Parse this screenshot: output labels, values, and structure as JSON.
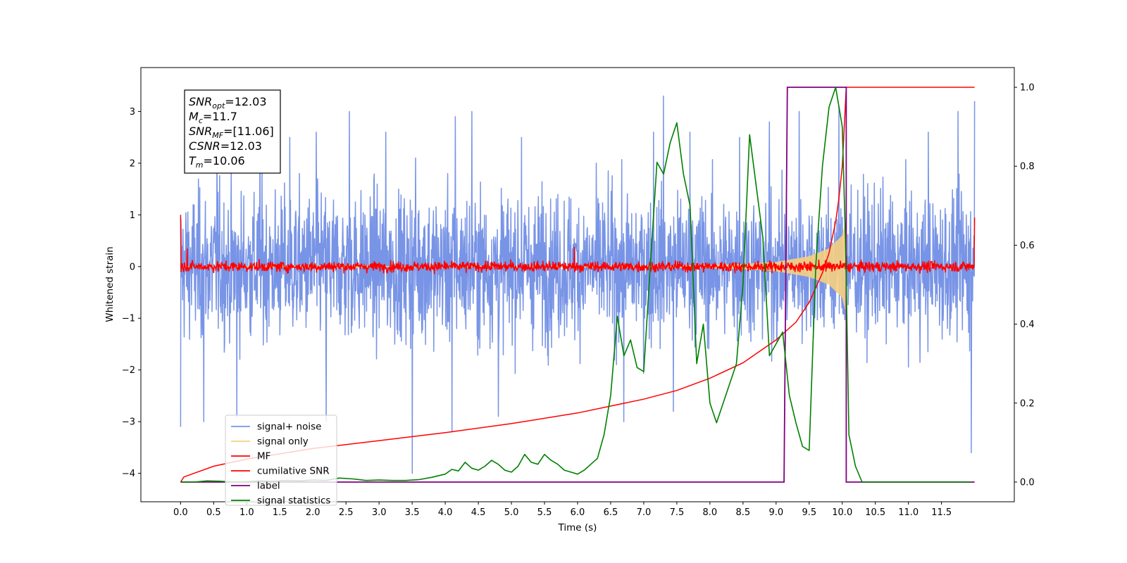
{
  "chart_data": {
    "type": "line",
    "xlabel": "Time (s)",
    "ylabel": "Whitened strain",
    "xlim": [
      -0.6,
      12.6
    ],
    "ylim": [
      -4.55,
      3.85
    ],
    "y2lim": [
      -0.05,
      1.05
    ],
    "x_ticks": [
      "0.0",
      "0.5",
      "1.0",
      "1.5",
      "2.0",
      "2.5",
      "3.0",
      "3.5",
      "4.0",
      "4.5",
      "5.0",
      "5.5",
      "6.0",
      "6.5",
      "7.0",
      "7.5",
      "8.0",
      "8.5",
      "9.0",
      "9.5",
      "10.0",
      "10.5",
      "11.0",
      "11.5"
    ],
    "y_ticks": [
      "−4",
      "−3",
      "−2",
      "−1",
      "0",
      "1",
      "2",
      "3"
    ],
    "y2_ticks": [
      "0.0",
      "0.2",
      "0.4",
      "0.6",
      "0.8",
      "1.0"
    ],
    "grid": false,
    "legend_position": "lower-left",
    "annotation": [
      {
        "sym": "SNR",
        "sub": "opt",
        "val": "=12.03"
      },
      {
        "sym": "M",
        "sub": "c",
        "val": "=11.7"
      },
      {
        "sym": "SNR",
        "sub": "MF",
        "val": "=[11.06]"
      },
      {
        "sym": "CSNR",
        "sub": "",
        "val": "=12.03"
      },
      {
        "sym": "T",
        "sub": "m",
        "val": "=10.06"
      }
    ],
    "series": [
      {
        "name": "signal+ noise",
        "color": "#7894e6",
        "axis": "left",
        "style": "dense noise",
        "x_range": [
          0.0,
          12.0
        ],
        "typical_band": [
          -1.8,
          1.8
        ],
        "peaks": [
          [
            0.0,
            -3.1
          ],
          [
            0.35,
            -3.0
          ],
          [
            0.55,
            2.6
          ],
          [
            0.85,
            -2.9
          ],
          [
            1.2,
            2.7
          ],
          [
            1.65,
            2.5
          ],
          [
            2.05,
            2.6
          ],
          [
            2.2,
            -3.0
          ],
          [
            2.55,
            3.0
          ],
          [
            3.1,
            2.6
          ],
          [
            3.5,
            -4.0
          ],
          [
            3.55,
            2.1
          ],
          [
            4.1,
            -3.2
          ],
          [
            4.15,
            2.9
          ],
          [
            4.4,
            3.0
          ],
          [
            4.8,
            -2.9
          ],
          [
            5.15,
            2.5
          ],
          [
            6.7,
            -3.0
          ],
          [
            7.15,
            2.6
          ],
          [
            7.3,
            3.3
          ],
          [
            7.45,
            -2.8
          ],
          [
            7.7,
            2.6
          ],
          [
            8.45,
            2.5
          ],
          [
            8.9,
            2.8
          ],
          [
            9.35,
            3.0
          ],
          [
            9.95,
            3.1
          ],
          [
            11.3,
            2.6
          ],
          [
            11.75,
            3.0
          ],
          [
            11.95,
            -3.6
          ],
          [
            12.0,
            3.2
          ]
        ]
      },
      {
        "name": "signal only",
        "color": "#f5cf80",
        "axis": "left",
        "style": "chirp",
        "x_range": [
          0.0,
          10.06
        ],
        "amplitude_points": [
          [
            7.5,
            0.02
          ],
          [
            8.5,
            0.05
          ],
          [
            9.0,
            0.09
          ],
          [
            9.5,
            0.2
          ],
          [
            9.8,
            0.35
          ],
          [
            10.0,
            0.6
          ],
          [
            10.06,
            0.9
          ]
        ]
      },
      {
        "name": "MF",
        "color": "#ff0000",
        "axis": "left",
        "style": "noise",
        "x_range": [
          0.0,
          12.0
        ],
        "typical_band": [
          -0.13,
          0.13
        ],
        "start_value": 1.0,
        "end_value": 0.95,
        "peaks": [
          [
            0.1,
            0.35
          ],
          [
            5.95,
            0.38
          ],
          [
            10.06,
            0.25
          ]
        ]
      },
      {
        "name": "cumilative SNR",
        "color": "#ff0000",
        "axis": "right",
        "x": [
          0.0,
          0.05,
          0.5,
          1.0,
          2.0,
          3.0,
          4.0,
          5.0,
          6.0,
          7.0,
          7.5,
          8.0,
          8.5,
          9.0,
          9.3,
          9.5,
          9.7,
          9.8,
          9.9,
          9.95,
          10.0,
          10.03,
          10.06,
          12.0
        ],
        "values": [
          0.0,
          0.013,
          0.04,
          0.058,
          0.085,
          0.105,
          0.125,
          0.148,
          0.175,
          0.21,
          0.232,
          0.263,
          0.302,
          0.36,
          0.405,
          0.455,
          0.53,
          0.58,
          0.66,
          0.72,
          0.8,
          0.9,
          1.0,
          1.0
        ]
      },
      {
        "name": "label",
        "color": "#800080",
        "axis": "right",
        "x": [
          0.0,
          9.12,
          9.17,
          10.06,
          10.06,
          12.0
        ],
        "values": [
          0.0,
          0.0,
          1.0,
          1.0,
          0.0,
          0.0
        ]
      },
      {
        "name": "signal statistics",
        "color": "#008000",
        "axis": "right",
        "x": [
          0.0,
          0.2,
          0.4,
          0.6,
          0.8,
          1.0,
          1.2,
          1.4,
          1.6,
          1.8,
          2.0,
          2.2,
          2.4,
          2.6,
          2.8,
          3.0,
          3.2,
          3.4,
          3.6,
          3.8,
          4.0,
          4.1,
          4.2,
          4.3,
          4.4,
          4.5,
          4.6,
          4.7,
          4.8,
          4.9,
          5.0,
          5.1,
          5.2,
          5.3,
          5.4,
          5.5,
          5.6,
          5.7,
          5.8,
          5.9,
          6.0,
          6.1,
          6.2,
          6.3,
          6.4,
          6.5,
          6.6,
          6.7,
          6.8,
          6.9,
          7.0,
          7.1,
          7.2,
          7.3,
          7.4,
          7.5,
          7.6,
          7.7,
          7.8,
          7.9,
          8.0,
          8.1,
          8.2,
          8.3,
          8.4,
          8.5,
          8.6,
          8.7,
          8.8,
          8.9,
          9.0,
          9.1,
          9.2,
          9.3,
          9.4,
          9.5,
          9.6,
          9.7,
          9.8,
          9.9,
          10.0,
          10.05,
          10.1,
          10.2,
          10.3,
          10.5,
          11.0,
          11.5,
          11.95
        ],
        "values": [
          0.0,
          0.0,
          0.003,
          0.002,
          0.0,
          0.001,
          0.003,
          0.002,
          0.004,
          0.003,
          0.005,
          0.004,
          0.01,
          0.008,
          0.004,
          0.005,
          0.004,
          0.004,
          0.006,
          0.012,
          0.02,
          0.032,
          0.028,
          0.05,
          0.035,
          0.03,
          0.04,
          0.055,
          0.045,
          0.03,
          0.025,
          0.04,
          0.07,
          0.05,
          0.045,
          0.07,
          0.055,
          0.045,
          0.03,
          0.025,
          0.02,
          0.03,
          0.045,
          0.06,
          0.12,
          0.22,
          0.42,
          0.32,
          0.36,
          0.29,
          0.28,
          0.55,
          0.81,
          0.78,
          0.86,
          0.91,
          0.78,
          0.7,
          0.3,
          0.4,
          0.2,
          0.15,
          0.2,
          0.25,
          0.3,
          0.5,
          0.88,
          0.75,
          0.62,
          0.32,
          0.35,
          0.38,
          0.22,
          0.15,
          0.09,
          0.08,
          0.55,
          0.8,
          0.95,
          1.0,
          0.9,
          0.6,
          0.12,
          0.04,
          0.0,
          0.0,
          0.0,
          0.0,
          0.0
        ]
      }
    ]
  }
}
